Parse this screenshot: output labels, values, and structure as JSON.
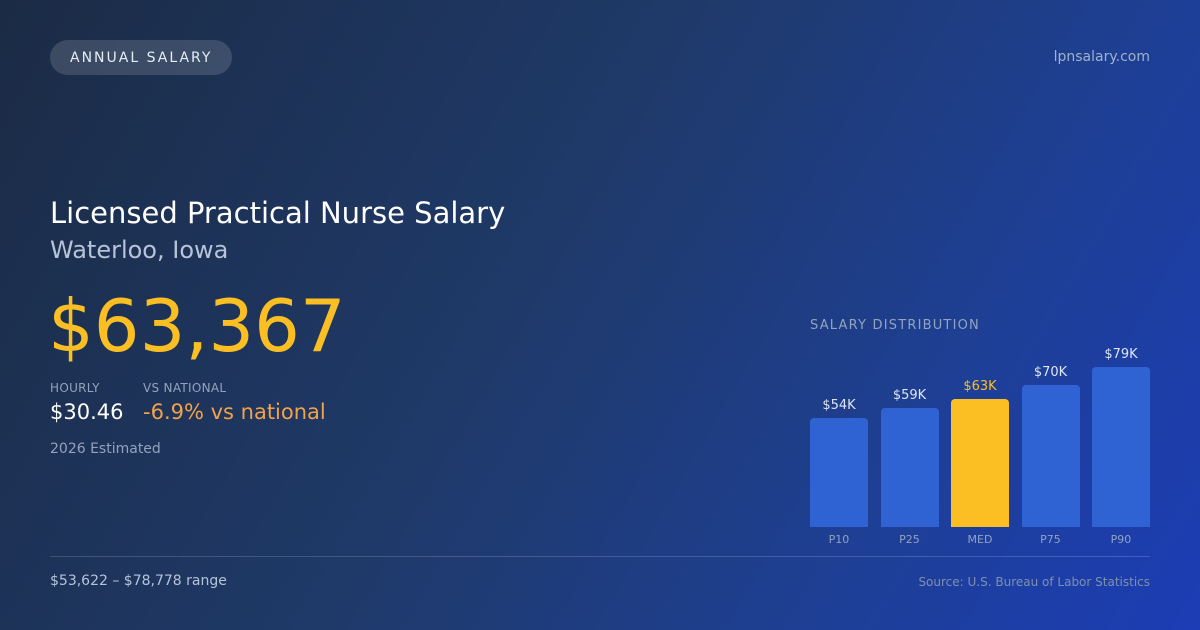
{
  "badge": "ANNUAL SALARY",
  "site": "lpnsalary.com",
  "title": "Licensed Practical Nurse Salary",
  "location": "Waterloo, Iowa",
  "salary": "$63,367",
  "hourly": {
    "label": "HOURLY",
    "value": "$30.46"
  },
  "vs_national": {
    "label": "VS NATIONAL",
    "value": "-6.9% vs national"
  },
  "estimated": "2026 Estimated",
  "range": "$53,622 – $78,778 range",
  "source": "Source: U.S. Bureau of Labor Statistics",
  "colors": {
    "accent": "#fbbf24",
    "bar": "#2f63d4",
    "negative": "#f4a248"
  },
  "chart_data": {
    "type": "bar",
    "title": "SALARY DISTRIBUTION",
    "categories": [
      "P10",
      "P25",
      "MED",
      "P75",
      "P90"
    ],
    "values": [
      54,
      59,
      63,
      70,
      79
    ],
    "value_labels": [
      "$54K",
      "$59K",
      "$63K",
      "$70K",
      "$79K"
    ],
    "highlight": "MED",
    "unit": "thousand USD"
  }
}
